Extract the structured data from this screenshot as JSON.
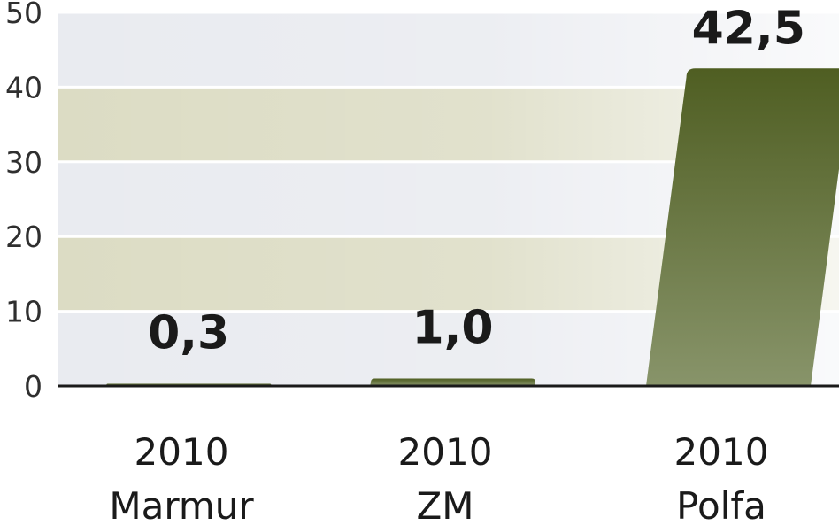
{
  "chart_data": {
    "type": "bar",
    "categories": [
      {
        "year": "2010",
        "name": "Marmur"
      },
      {
        "year": "2010",
        "name": "ZM"
      },
      {
        "year": "2010",
        "name": "Polfa"
      }
    ],
    "values": [
      0.3,
      1.0,
      42.5
    ],
    "value_labels": [
      "0,3",
      "1,0",
      "42,5"
    ],
    "y_ticks": [
      "0",
      "10",
      "20",
      "30",
      "40",
      "50"
    ],
    "ylim": [
      0,
      50
    ],
    "grid": true,
    "colors": {
      "bar_top": "#4f5e22",
      "bar_bottom": "#88946a",
      "band_light": "#e9ebf0",
      "band_tan": "#dcdcc4",
      "axis": "#1a1a1a"
    }
  }
}
